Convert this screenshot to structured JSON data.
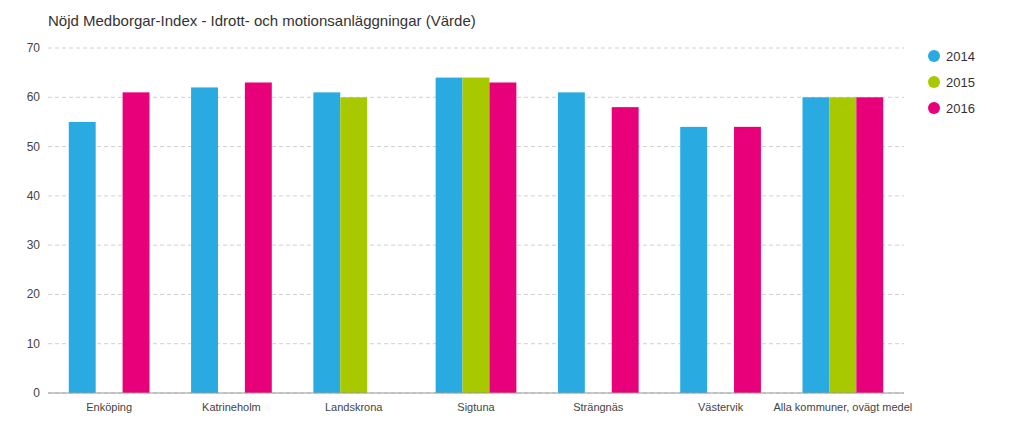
{
  "chart_data": {
    "type": "bar",
    "title": "Nöjd Medborgar-Index - Idrott- och motionsanläggningar (Värde)",
    "categories": [
      "Enköping",
      "Katrineholm",
      "Landskrona",
      "Sigtuna",
      "Strängnäs",
      "Västervik",
      "Alla kommuner, ovägt medel"
    ],
    "series": [
      {
        "name": "2014",
        "color": "#29ABE2",
        "values": [
          55,
          62,
          61,
          64,
          61,
          54,
          60
        ]
      },
      {
        "name": "2015",
        "color": "#A8C800",
        "values": [
          null,
          null,
          60,
          64,
          null,
          null,
          60
        ]
      },
      {
        "name": "2016",
        "color": "#E8007A",
        "values": [
          61,
          63,
          null,
          63,
          58,
          54,
          60
        ]
      }
    ],
    "ylim": [
      0,
      70
    ],
    "yticks": [
      0,
      10,
      20,
      30,
      40,
      50,
      60,
      70
    ],
    "grid": true,
    "legend": "right"
  }
}
